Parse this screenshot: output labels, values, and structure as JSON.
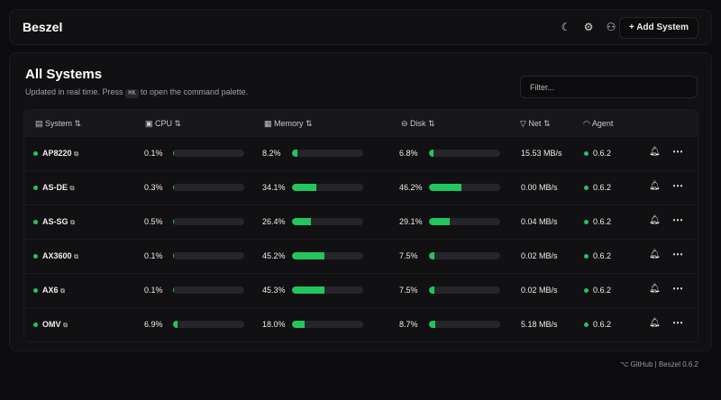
{
  "header": {
    "logo": "Beszel",
    "add_label": "+ Add System"
  },
  "main": {
    "title": "All Systems",
    "subtitle_pre": "Updated in real time. Press",
    "shortcut": "⌘K",
    "subtitle_post": "to open the command palette.",
    "filter_placeholder": "Filter..."
  },
  "columns": [
    "System",
    "CPU",
    "Memory",
    "Disk",
    "Net",
    "Agent"
  ],
  "rows": [
    {
      "name": "AP8220",
      "cpu": 0.1,
      "mem": 8.2,
      "disk": 6.8,
      "net": "15.53 MB/s",
      "agent": "0.6.2"
    },
    {
      "name": "AS-DE",
      "cpu": 0.3,
      "mem": 34.1,
      "disk": 46.2,
      "net": "0.00 MB/s",
      "agent": "0.6.2"
    },
    {
      "name": "AS-SG",
      "cpu": 0.5,
      "mem": 26.4,
      "disk": 29.1,
      "net": "0.04 MB/s",
      "agent": "0.6.2"
    },
    {
      "name": "AX3600",
      "cpu": 0.1,
      "mem": 45.2,
      "disk": 7.5,
      "net": "0.02 MB/s",
      "agent": "0.6.2"
    },
    {
      "name": "AX6",
      "cpu": 0.1,
      "mem": 45.3,
      "disk": 7.5,
      "net": "0.02 MB/s",
      "agent": "0.6.2"
    },
    {
      "name": "OMV",
      "cpu": 6.9,
      "mem": 18.0,
      "disk": 8.7,
      "net": "5.18 MB/s",
      "agent": "0.6.2"
    }
  ],
  "footer": {
    "github": "GitHub",
    "version": "Beszel 0.6.2"
  },
  "colors": {
    "accent": "#22c55e"
  }
}
